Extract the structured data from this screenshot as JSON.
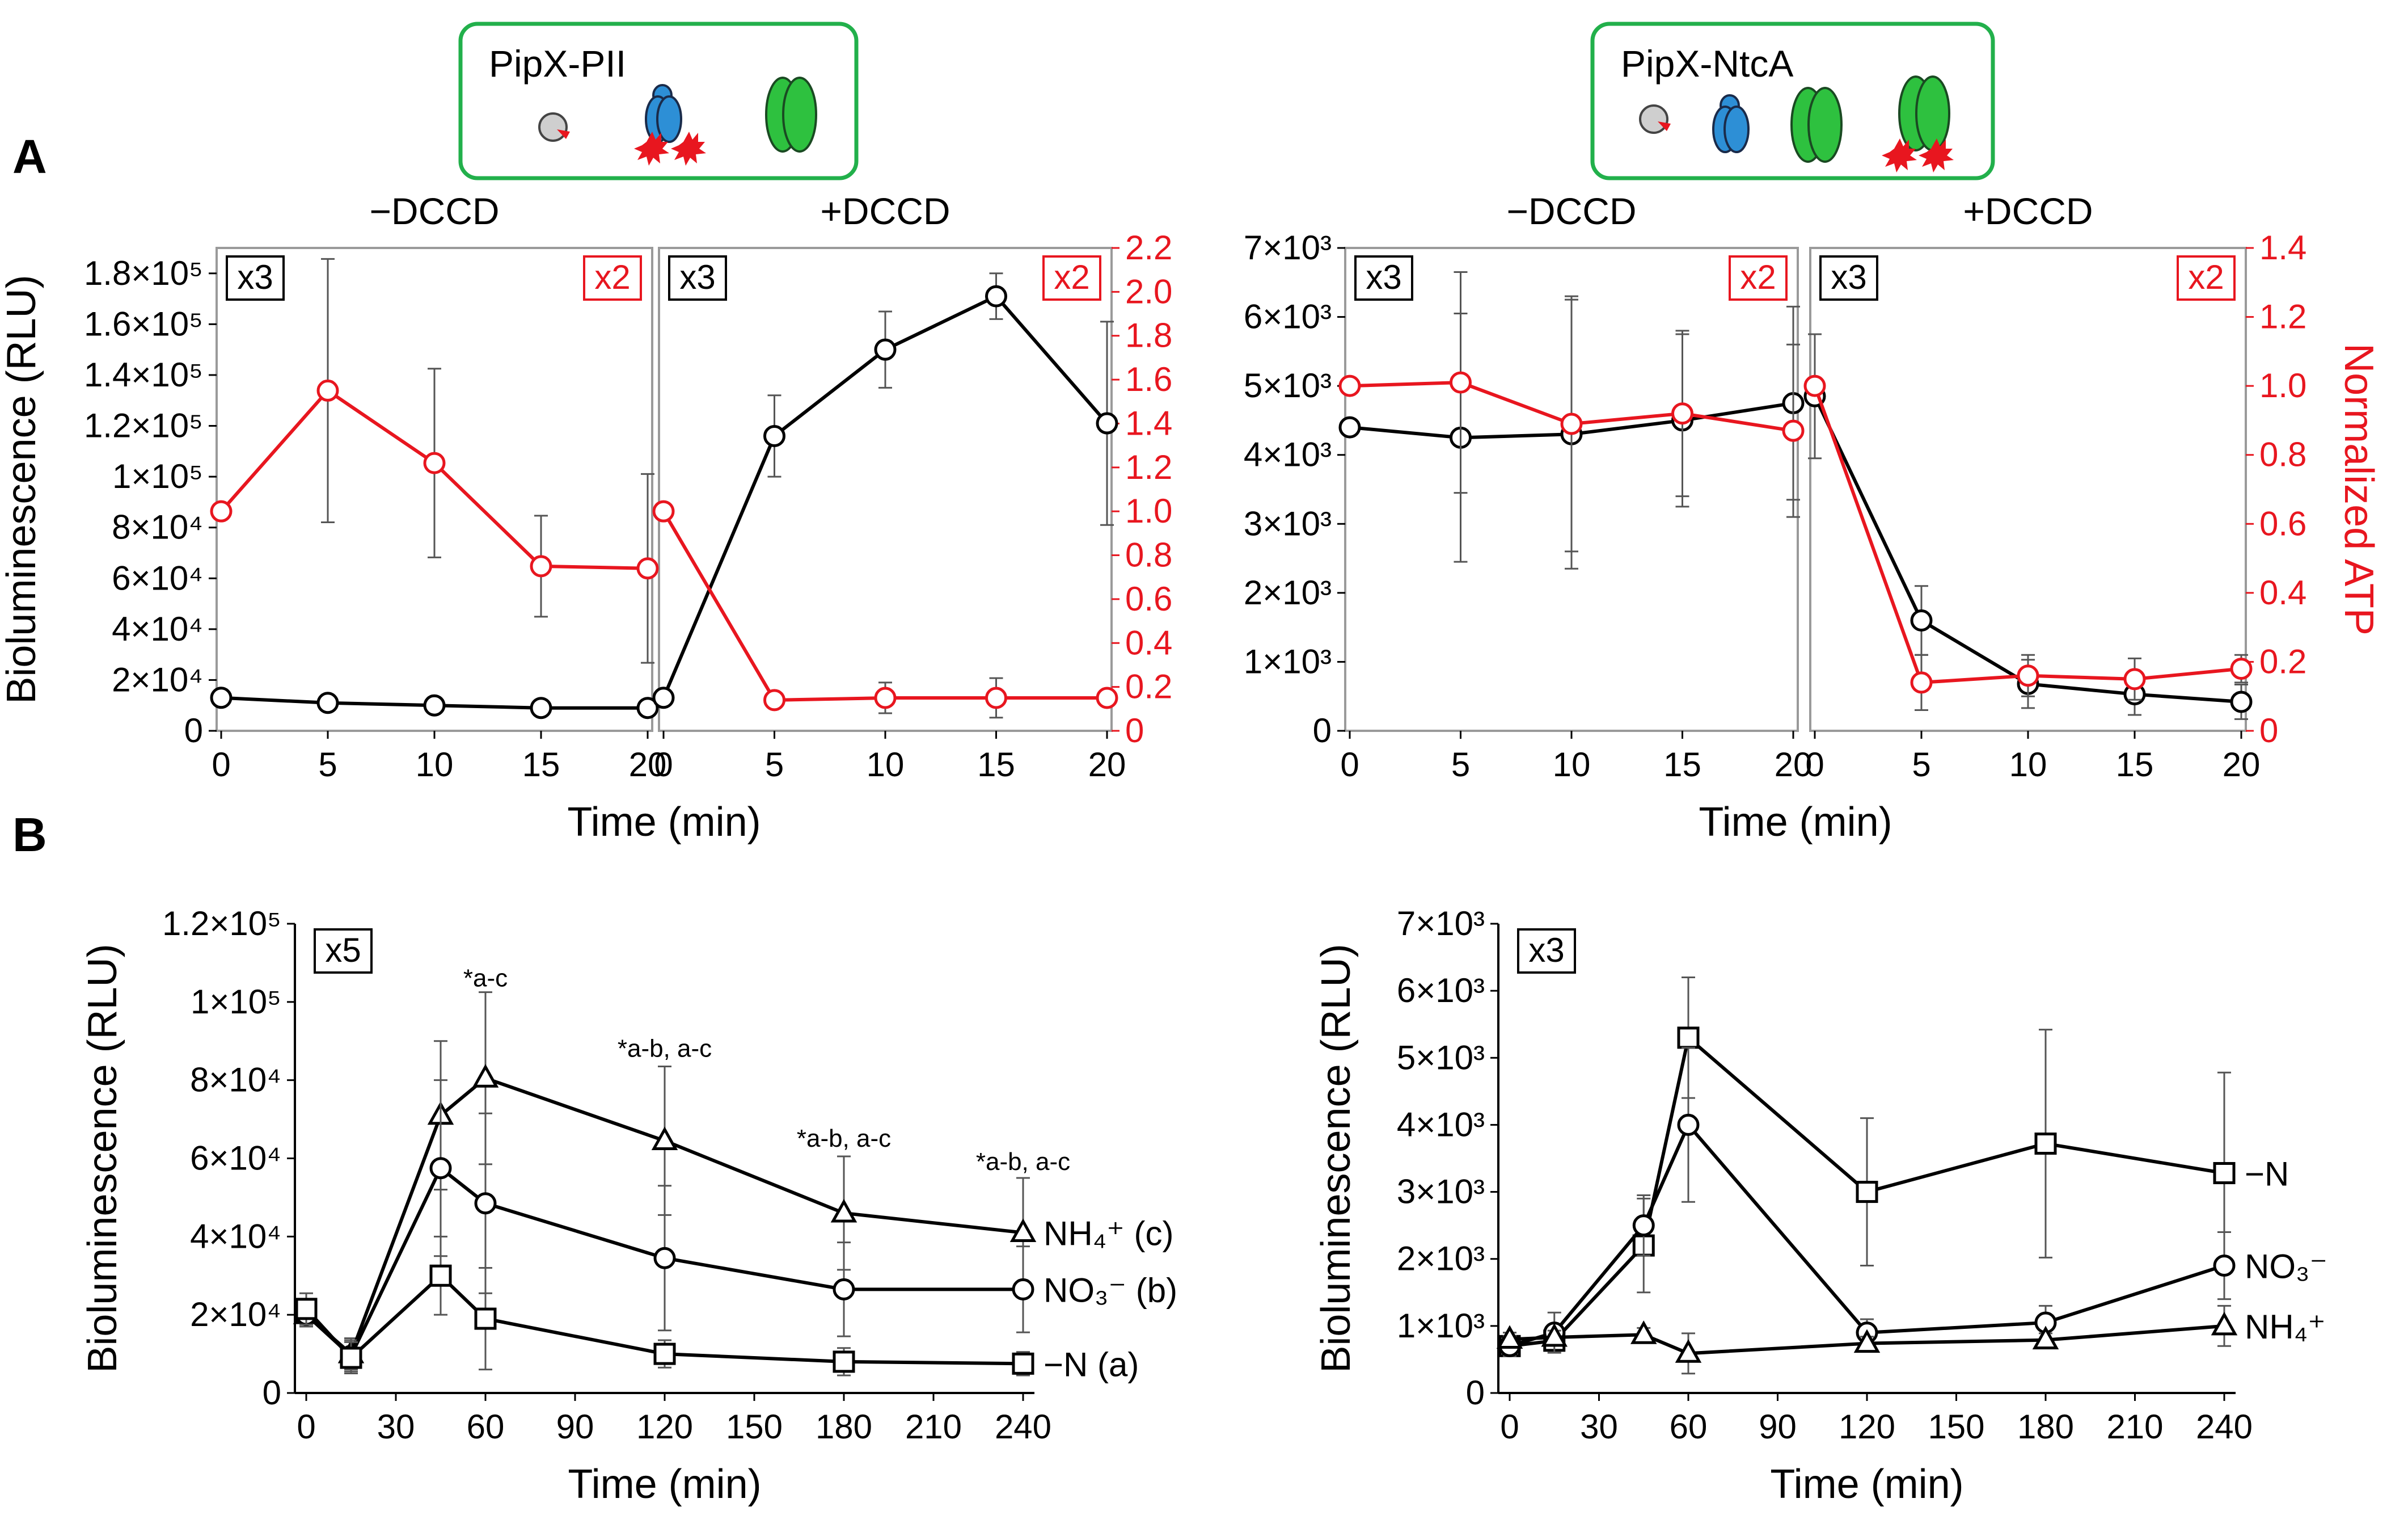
{
  "panel_labels": {
    "a": "A",
    "b": "B"
  },
  "schemes": [
    {
      "title": "PipX-PII"
    },
    {
      "title": "PipX-NtcA"
    }
  ],
  "colors": {
    "black": "#000000",
    "red": "#e8161f",
    "frame": "#9a9a9a",
    "green_box": "#22b04b",
    "blue": "#2d8fd6",
    "green": "#2ec13f"
  },
  "axis_text": {
    "time_min": "Time (min)",
    "biolum": "Bioluminescence (RLU)",
    "norm_atp": "Normalized ATP",
    "minus_dccd": "−DCCD",
    "plus_dccd": "+DCCD",
    "x2": "x2",
    "x3": "x3",
    "x5": "x5"
  },
  "chart_data": [
    {
      "id": "A-left",
      "type": "line",
      "title": "PipX-PII",
      "panels": [
        "−DCCD",
        "+DCCD"
      ],
      "xlabel": "Time (min)",
      "ylabel": "Bioluminescence (RLU)",
      "y2label": "",
      "ylim": [
        0,
        190000
      ],
      "y2lim": [
        0,
        2.2
      ],
      "yticks": [
        {
          "v": 0,
          "l": "0"
        },
        {
          "v": 20000,
          "l": "2×10⁴"
        },
        {
          "v": 40000,
          "l": "4×10⁴"
        },
        {
          "v": 60000,
          "l": "6×10⁴"
        },
        {
          "v": 80000,
          "l": "8×10⁴"
        },
        {
          "v": 100000,
          "l": "1×10⁵"
        },
        {
          "v": 120000,
          "l": "1.2×10⁵"
        },
        {
          "v": 140000,
          "l": "1.4×10⁵"
        },
        {
          "v": 160000,
          "l": "1.6×10⁵"
        },
        {
          "v": 180000,
          "l": "1.8×10⁵"
        }
      ],
      "y2ticks": [
        "0",
        "0.2",
        "0.4",
        "0.6",
        "0.8",
        "1.0",
        "1.2",
        "1.4",
        "1.6",
        "1.8",
        "2.0",
        "2.2"
      ],
      "x": [
        0,
        5,
        10,
        15,
        20
      ],
      "series": [
        {
          "panel": 0,
          "axis": "left",
          "color": "black",
          "values": [
            13000,
            11000,
            10000,
            9000,
            9000
          ],
          "err": [
            500,
            500,
            500,
            500,
            500
          ]
        },
        {
          "panel": 0,
          "axis": "right",
          "color": "red",
          "values": [
            1.0,
            1.55,
            1.22,
            0.75,
            0.74
          ],
          "err": [
            0,
            0.6,
            0.43,
            0.23,
            0.43
          ]
        },
        {
          "panel": 1,
          "axis": "left",
          "color": "black",
          "values": [
            13000,
            116000,
            150000,
            171000,
            121000
          ],
          "err": [
            0,
            16000,
            15000,
            9000,
            40000
          ]
        },
        {
          "panel": 1,
          "axis": "right",
          "color": "red",
          "values": [
            1.0,
            0.14,
            0.15,
            0.15,
            0.15
          ],
          "err": [
            0,
            0,
            0.07,
            0.09,
            0.03
          ]
        }
      ]
    },
    {
      "id": "A-right",
      "type": "line",
      "title": "PipX-NtcA",
      "panels": [
        "−DCCD",
        "+DCCD"
      ],
      "xlabel": "Time (min)",
      "ylabel": "",
      "y2label": "Normalized ATP",
      "ylim": [
        0,
        7000
      ],
      "y2lim": [
        0,
        1.4
      ],
      "yticks": [
        {
          "v": 0,
          "l": "0"
        },
        {
          "v": 1000,
          "l": "1×10³"
        },
        {
          "v": 2000,
          "l": "2×10³"
        },
        {
          "v": 3000,
          "l": "3×10³"
        },
        {
          "v": 4000,
          "l": "4×10³"
        },
        {
          "v": 5000,
          "l": "5×10³"
        },
        {
          "v": 6000,
          "l": "6×10³"
        },
        {
          "v": 7000,
          "l": "7×10³"
        }
      ],
      "y2ticks": [
        "0",
        "0.2",
        "0.4",
        "0.6",
        "0.8",
        "1.0",
        "1.2",
        "1.4"
      ],
      "x": [
        0,
        5,
        10,
        15,
        20
      ],
      "series": [
        {
          "panel": 0,
          "axis": "left",
          "color": "black",
          "values": [
            4400,
            4250,
            4300,
            4500,
            4750
          ],
          "err": [
            0,
            1800,
            1950,
            1250,
            1400
          ]
        },
        {
          "panel": 0,
          "axis": "right",
          "color": "red",
          "values": [
            1.0,
            1.01,
            0.89,
            0.92,
            0.87
          ],
          "err": [
            0,
            0.32,
            0.37,
            0.24,
            0.25
          ]
        },
        {
          "panel": 1,
          "axis": "left",
          "color": "black",
          "values": [
            4850,
            1600,
            680,
            530,
            420
          ],
          "err": [
            900,
            500,
            350,
            300,
            250
          ]
        },
        {
          "panel": 1,
          "axis": "right",
          "color": "red",
          "values": [
            1.0,
            0.14,
            0.16,
            0.15,
            0.18
          ],
          "err": [
            0,
            0.08,
            0.06,
            0.06,
            0.04
          ]
        }
      ]
    },
    {
      "id": "B-left",
      "type": "line",
      "xlabel": "Time (min)",
      "ylabel": "Bioluminescence (RLU)",
      "ylim": [
        0,
        120000
      ],
      "yticks": [
        {
          "v": 0,
          "l": "0"
        },
        {
          "v": 20000,
          "l": "2×10⁴"
        },
        {
          "v": 40000,
          "l": "4×10⁴"
        },
        {
          "v": 60000,
          "l": "6×10⁴"
        },
        {
          "v": 80000,
          "l": "8×10⁴"
        },
        {
          "v": 100000,
          "l": "1×10⁵"
        },
        {
          "v": 120000,
          "l": "1.2×10⁵"
        }
      ],
      "x": [
        0,
        15,
        45,
        60,
        120,
        180,
        240
      ],
      "xticks": [
        "0",
        "30",
        "60",
        "90",
        "120",
        "150",
        "180",
        "210",
        "240"
      ],
      "series": [
        {
          "name": "NH₄⁺ (c)",
          "marker": "triangle",
          "values": [
            20000,
            10000,
            71000,
            80500,
            64500,
            46000,
            41000
          ],
          "err": [
            3000,
            4000,
            19000,
            22000,
            19000,
            14500,
            14000
          ]
        },
        {
          "name": "NO₃⁻ (b)",
          "marker": "circle",
          "values": [
            20000,
            9500,
            57500,
            48500,
            34500,
            26500,
            26500
          ],
          "err": [
            3000,
            4000,
            22500,
            23000,
            18500,
            12000,
            11000
          ]
        },
        {
          "name": "−N (a)",
          "marker": "square",
          "values": [
            21500,
            9000,
            30000,
            19000,
            10000,
            8000,
            7500
          ],
          "err": [
            4000,
            4000,
            10000,
            13000,
            3500,
            3500,
            3000
          ]
        }
      ],
      "annotations": [
        {
          "x": 60,
          "y": 104000,
          "text": "*a-c"
        },
        {
          "x": 120,
          "y": 86000,
          "text": "*a-b, a-c"
        },
        {
          "x": 180,
          "y": 63000,
          "text": "*a-b, a-c"
        },
        {
          "x": 240,
          "y": 57000,
          "text": "*a-b, a-c"
        }
      ]
    },
    {
      "id": "B-right",
      "type": "line",
      "xlabel": "Time (min)",
      "ylabel": "Bioluminescence (RLU)",
      "ylim": [
        0,
        7000
      ],
      "yticks": [
        {
          "v": 0,
          "l": "0"
        },
        {
          "v": 1000,
          "l": "1×10³"
        },
        {
          "v": 2000,
          "l": "2×10³"
        },
        {
          "v": 3000,
          "l": "3×10³"
        },
        {
          "v": 4000,
          "l": "4×10³"
        },
        {
          "v": 5000,
          "l": "5×10³"
        },
        {
          "v": 6000,
          "l": "6×10³"
        },
        {
          "v": 7000,
          "l": "7×10³"
        }
      ],
      "x": [
        0,
        15,
        45,
        60,
        120,
        180,
        240
      ],
      "xticks": [
        "0",
        "30",
        "60",
        "90",
        "120",
        "150",
        "180",
        "210",
        "240"
      ],
      "series": [
        {
          "name": "−N",
          "marker": "square",
          "values": [
            700,
            780,
            2200,
            5300,
            3000,
            3720,
            3280
          ],
          "err": [
            150,
            150,
            700,
            900,
            1100,
            1700,
            1500
          ]
        },
        {
          "name": "NO₃⁻",
          "marker": "circle",
          "values": [
            700,
            900,
            2500,
            4000,
            900,
            1050,
            1900
          ],
          "err": [
            150,
            300,
            450,
            1150,
            200,
            250,
            500
          ]
        },
        {
          "name": "NH₄⁺",
          "marker": "triangle",
          "values": [
            800,
            830,
            870,
            590,
            740,
            790,
            1000
          ],
          "err": [
            100,
            100,
            100,
            300,
            100,
            100,
            300
          ]
        }
      ]
    }
  ]
}
